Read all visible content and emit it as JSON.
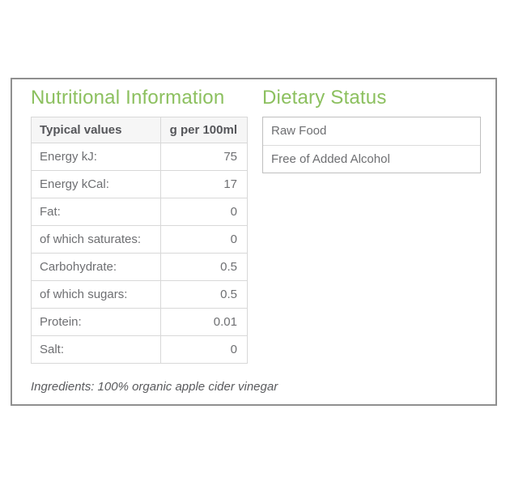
{
  "nutrition": {
    "title": "Nutritional Information",
    "table": {
      "header": {
        "label": "Typical values",
        "unit": "g per 100ml"
      },
      "rows": [
        {
          "label": "Energy kJ:",
          "value": "75"
        },
        {
          "label": "Energy kCal:",
          "value": "17"
        },
        {
          "label": "Fat:",
          "value": "0"
        },
        {
          "label": "of which saturates:",
          "value": "0"
        },
        {
          "label": "Carbohydrate:",
          "value": "0.5"
        },
        {
          "label": "of which sugars:",
          "value": "0.5"
        },
        {
          "label": "Protein:",
          "value": "0.01"
        },
        {
          "label": "Salt:",
          "value": "0"
        }
      ]
    },
    "ingredients": "Ingredients: 100% organic apple cider vinegar"
  },
  "dietary": {
    "title": "Dietary Status",
    "items": [
      "Raw Food",
      "Free of Added Alcohol"
    ]
  },
  "colors": {
    "accent_green": "#8cc05f",
    "text_gray": "#6e6f72",
    "header_text": "#55565a",
    "table_border": "#bfbfbf",
    "frame_border": "#8f8f8f"
  }
}
